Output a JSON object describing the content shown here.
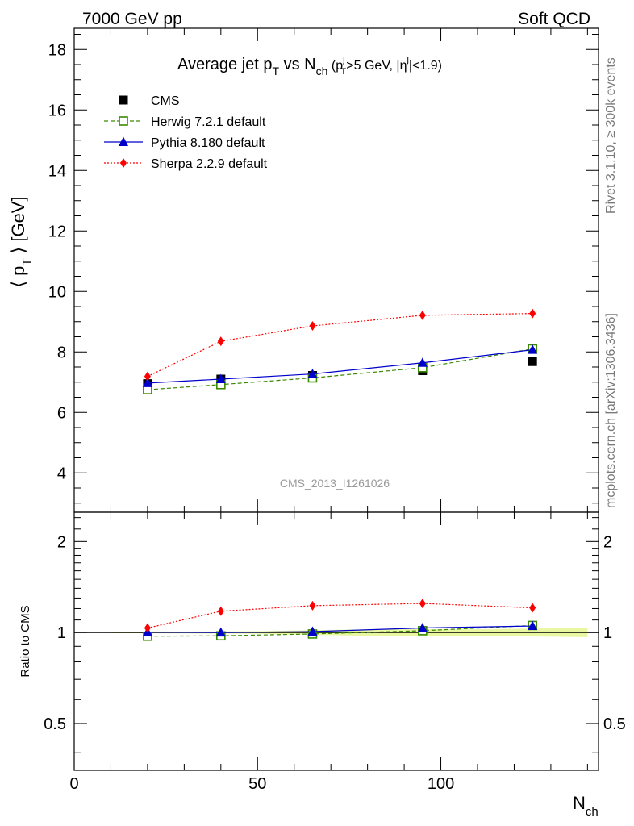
{
  "header": {
    "left": "7000 GeV pp",
    "right": "Soft QCD"
  },
  "side_labels": {
    "rivet": "Rivet 3.1.10, ≥ 300k events",
    "mcplots": "mcplots.cern.ch [arXiv:1306.3436]"
  },
  "colors": {
    "cms": "#000000",
    "herwig": "#3a8a00",
    "pythia": "#0000cc",
    "sherpa": "#ff0000",
    "band": "#e8f7a0"
  },
  "chart_data": [
    {
      "type": "line",
      "title": "Average jet p_T vs N_ch (p_T^j>5 GeV, |η^j|<1.9)",
      "title_parts": {
        "main1": "Average jet p",
        "sub1": "T",
        "main2": " vs N",
        "sub2": "ch",
        "cut1": " (p",
        "cut1_sup": "j",
        "cut1_sub": "T",
        "cut2": ">5 GeV, |η",
        "cut2_sup": "j",
        "cut3": "|<1.9)"
      },
      "ylabel": "⟨ p_T ⟩ [GeV]",
      "ylabel_parts": {
        "open": "⟨ p",
        "sub": "T",
        "close": " ⟩ [GeV]"
      },
      "watermark": "CMS_2013_I1261026",
      "xlim": [
        0,
        143
      ],
      "ylim": [
        2.7,
        18.7
      ],
      "yticks": [
        4,
        6,
        8,
        10,
        12,
        14,
        16,
        18
      ],
      "ytick_labels": [
        "4",
        "6",
        "8",
        "10",
        "12",
        "14",
        "16",
        "18"
      ],
      "legend_position": "top-left",
      "x": [
        20,
        40,
        65,
        95,
        125
      ],
      "series": [
        {
          "name": "CMS",
          "values": [
            6.95,
            7.1,
            7.22,
            7.38,
            7.68
          ]
        },
        {
          "name": "Herwig 7.2.1 default",
          "values": [
            6.75,
            6.92,
            7.14,
            7.48,
            8.1
          ]
        },
        {
          "name": "Pythia 8.180 default",
          "values": [
            6.97,
            7.1,
            7.27,
            7.64,
            8.07
          ]
        },
        {
          "name": "Sherpa 2.2.9 default",
          "values": [
            7.19,
            8.35,
            8.86,
            9.21,
            9.27
          ]
        }
      ]
    },
    {
      "type": "line",
      "ylabel": "Ratio to CMS",
      "xlabel": "N_ch",
      "xlabel_parts": {
        "main": "N",
        "sub": "ch"
      },
      "xlim": [
        0,
        143
      ],
      "ylim": [
        0.35,
        2.5
      ],
      "log_y": true,
      "yticks": [
        0.5,
        1,
        2
      ],
      "ytick_labels": [
        "0.5",
        "1",
        "2"
      ],
      "xticks": [
        0,
        50,
        100
      ],
      "xtick_labels": [
        "0",
        "50",
        "100"
      ],
      "x": [
        20,
        40,
        65,
        95,
        125
      ],
      "band": {
        "x": [
          10,
          30,
          50,
          80,
          110,
          140
        ],
        "lo": [
          0.995,
          0.993,
          0.99,
          0.975,
          0.975,
          0.965
        ],
        "hi": [
          1.005,
          1.007,
          1.01,
          1.025,
          1.025,
          1.035
        ]
      },
      "series": [
        {
          "name": "Herwig 7.2.1 default",
          "values": [
            0.972,
            0.975,
            0.989,
            1.014,
            1.055
          ]
        },
        {
          "name": "Pythia 8.180 default",
          "values": [
            1.003,
            1.0,
            1.007,
            1.035,
            1.051
          ]
        },
        {
          "name": "Sherpa 2.2.9 default",
          "values": [
            1.035,
            1.176,
            1.227,
            1.248,
            1.207
          ]
        }
      ]
    }
  ]
}
